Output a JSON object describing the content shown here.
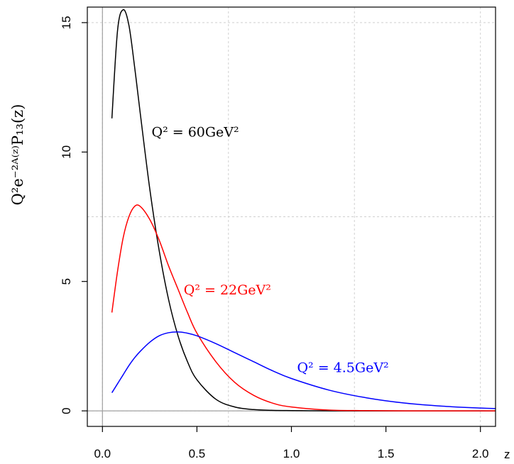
{
  "chart_data": {
    "type": "line",
    "title": "",
    "xlabel": "z",
    "ylabel": "Q²e⁻²ᴬ⁽ᶻ⁾P₁₃(z)",
    "xlim": [
      -0.08,
      2.08
    ],
    "ylim": [
      -0.6,
      15.6
    ],
    "x_ticks": [
      "0.0",
      "0.5",
      "1.0",
      "1.5",
      "2.0"
    ],
    "y_ticks": [
      "0",
      "5",
      "10",
      "15"
    ],
    "grid": true,
    "x": [
      0.05,
      0.08,
      0.11,
      0.14,
      0.17,
      0.2,
      0.25,
      0.3,
      0.35,
      0.4,
      0.45,
      0.5,
      0.6,
      0.7,
      0.8,
      0.9,
      1.0,
      1.2,
      1.4,
      1.6,
      1.8,
      2.0,
      2.08
    ],
    "series": [
      {
        "name": "Q² = 60GeV²",
        "color": "#000000",
        "values": [
          11.3,
          14.7,
          15.5,
          14.9,
          13.3,
          11.5,
          8.6,
          6.2,
          4.3,
          2.9,
          1.9,
          1.2,
          0.45,
          0.15,
          0.05,
          0.02,
          0.01,
          0.0,
          0.0,
          0.0,
          0.0,
          0.0,
          0.0
        ]
      },
      {
        "name": "Q² = 22GeV²",
        "color": "#ff0000",
        "values": [
          3.8,
          5.4,
          6.7,
          7.5,
          7.9,
          7.9,
          7.4,
          6.6,
          5.6,
          4.7,
          3.8,
          3.0,
          1.9,
          1.1,
          0.6,
          0.3,
          0.15,
          0.03,
          0.01,
          0.0,
          0.0,
          0.0,
          0.0
        ]
      },
      {
        "name": "Q² = 4.5GeV²",
        "color": "#0000ff",
        "values": [
          0.7,
          1.05,
          1.4,
          1.75,
          2.05,
          2.3,
          2.65,
          2.9,
          3.02,
          3.05,
          3.0,
          2.9,
          2.6,
          2.25,
          1.9,
          1.55,
          1.25,
          0.8,
          0.5,
          0.3,
          0.18,
          0.11,
          0.09
        ]
      }
    ],
    "labels": [
      {
        "text": "Q² = 60GeV²",
        "color": "#000000",
        "x": 0.26,
        "y": 10.6
      },
      {
        "text": "Q² = 22GeV²",
        "color": "#ff0000",
        "x": 0.43,
        "y": 4.5
      },
      {
        "text": "Q² = 4.5GeV²",
        "color": "#0000ff",
        "x": 1.03,
        "y": 1.5
      }
    ]
  }
}
